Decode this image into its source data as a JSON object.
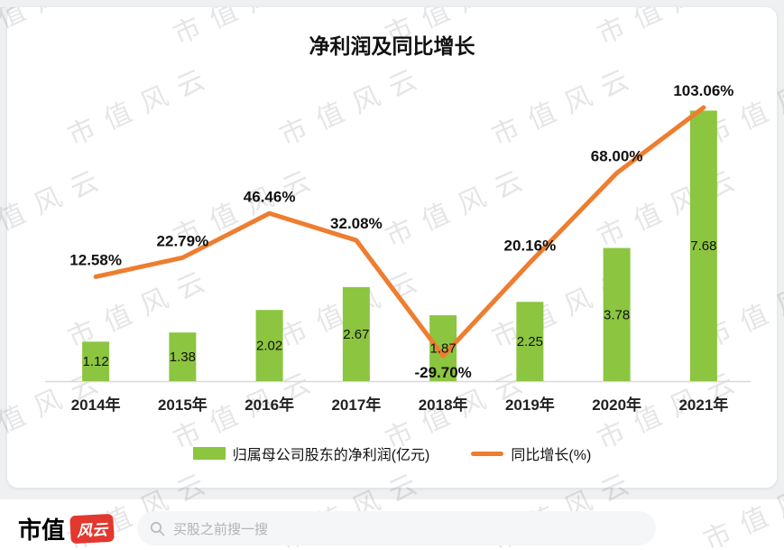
{
  "title": "净利润及同比增长",
  "watermark_text": "市值风云",
  "chart_data": {
    "type": "bar",
    "subtype": "bar+line combo",
    "categories": [
      "2014年",
      "2015年",
      "2016年",
      "2017年",
      "2018年",
      "2019年",
      "2020年",
      "2021年"
    ],
    "series": [
      {
        "name": "归属母公司股东的净利润(亿元)",
        "type": "bar",
        "color": "#8cc540",
        "values": [
          1.12,
          1.38,
          2.02,
          2.67,
          1.87,
          2.25,
          3.78,
          7.68
        ],
        "labels": [
          "1.12",
          "1.38",
          "2.02",
          "2.67",
          "1.87",
          "2.25",
          "3.78",
          "7.68"
        ]
      },
      {
        "name": "同比增长(%)",
        "type": "line",
        "color": "#ee7d2f",
        "values": [
          12.58,
          22.79,
          46.46,
          32.08,
          -29.7,
          20.16,
          68.0,
          103.06
        ],
        "labels": [
          "12.58%",
          "22.79%",
          "46.46%",
          "32.08%",
          "-29.70%",
          "20.16%",
          "68.00%",
          "103.06%"
        ]
      }
    ],
    "bar_axis_range": [
      0,
      8
    ],
    "line_axis_range_pct": [
      -45,
      115
    ],
    "grid": false,
    "legend_position": "bottom"
  },
  "footer": {
    "logo_text": "市值",
    "logo_badge": "风云",
    "search_placeholder": "买股之前搜一搜"
  }
}
